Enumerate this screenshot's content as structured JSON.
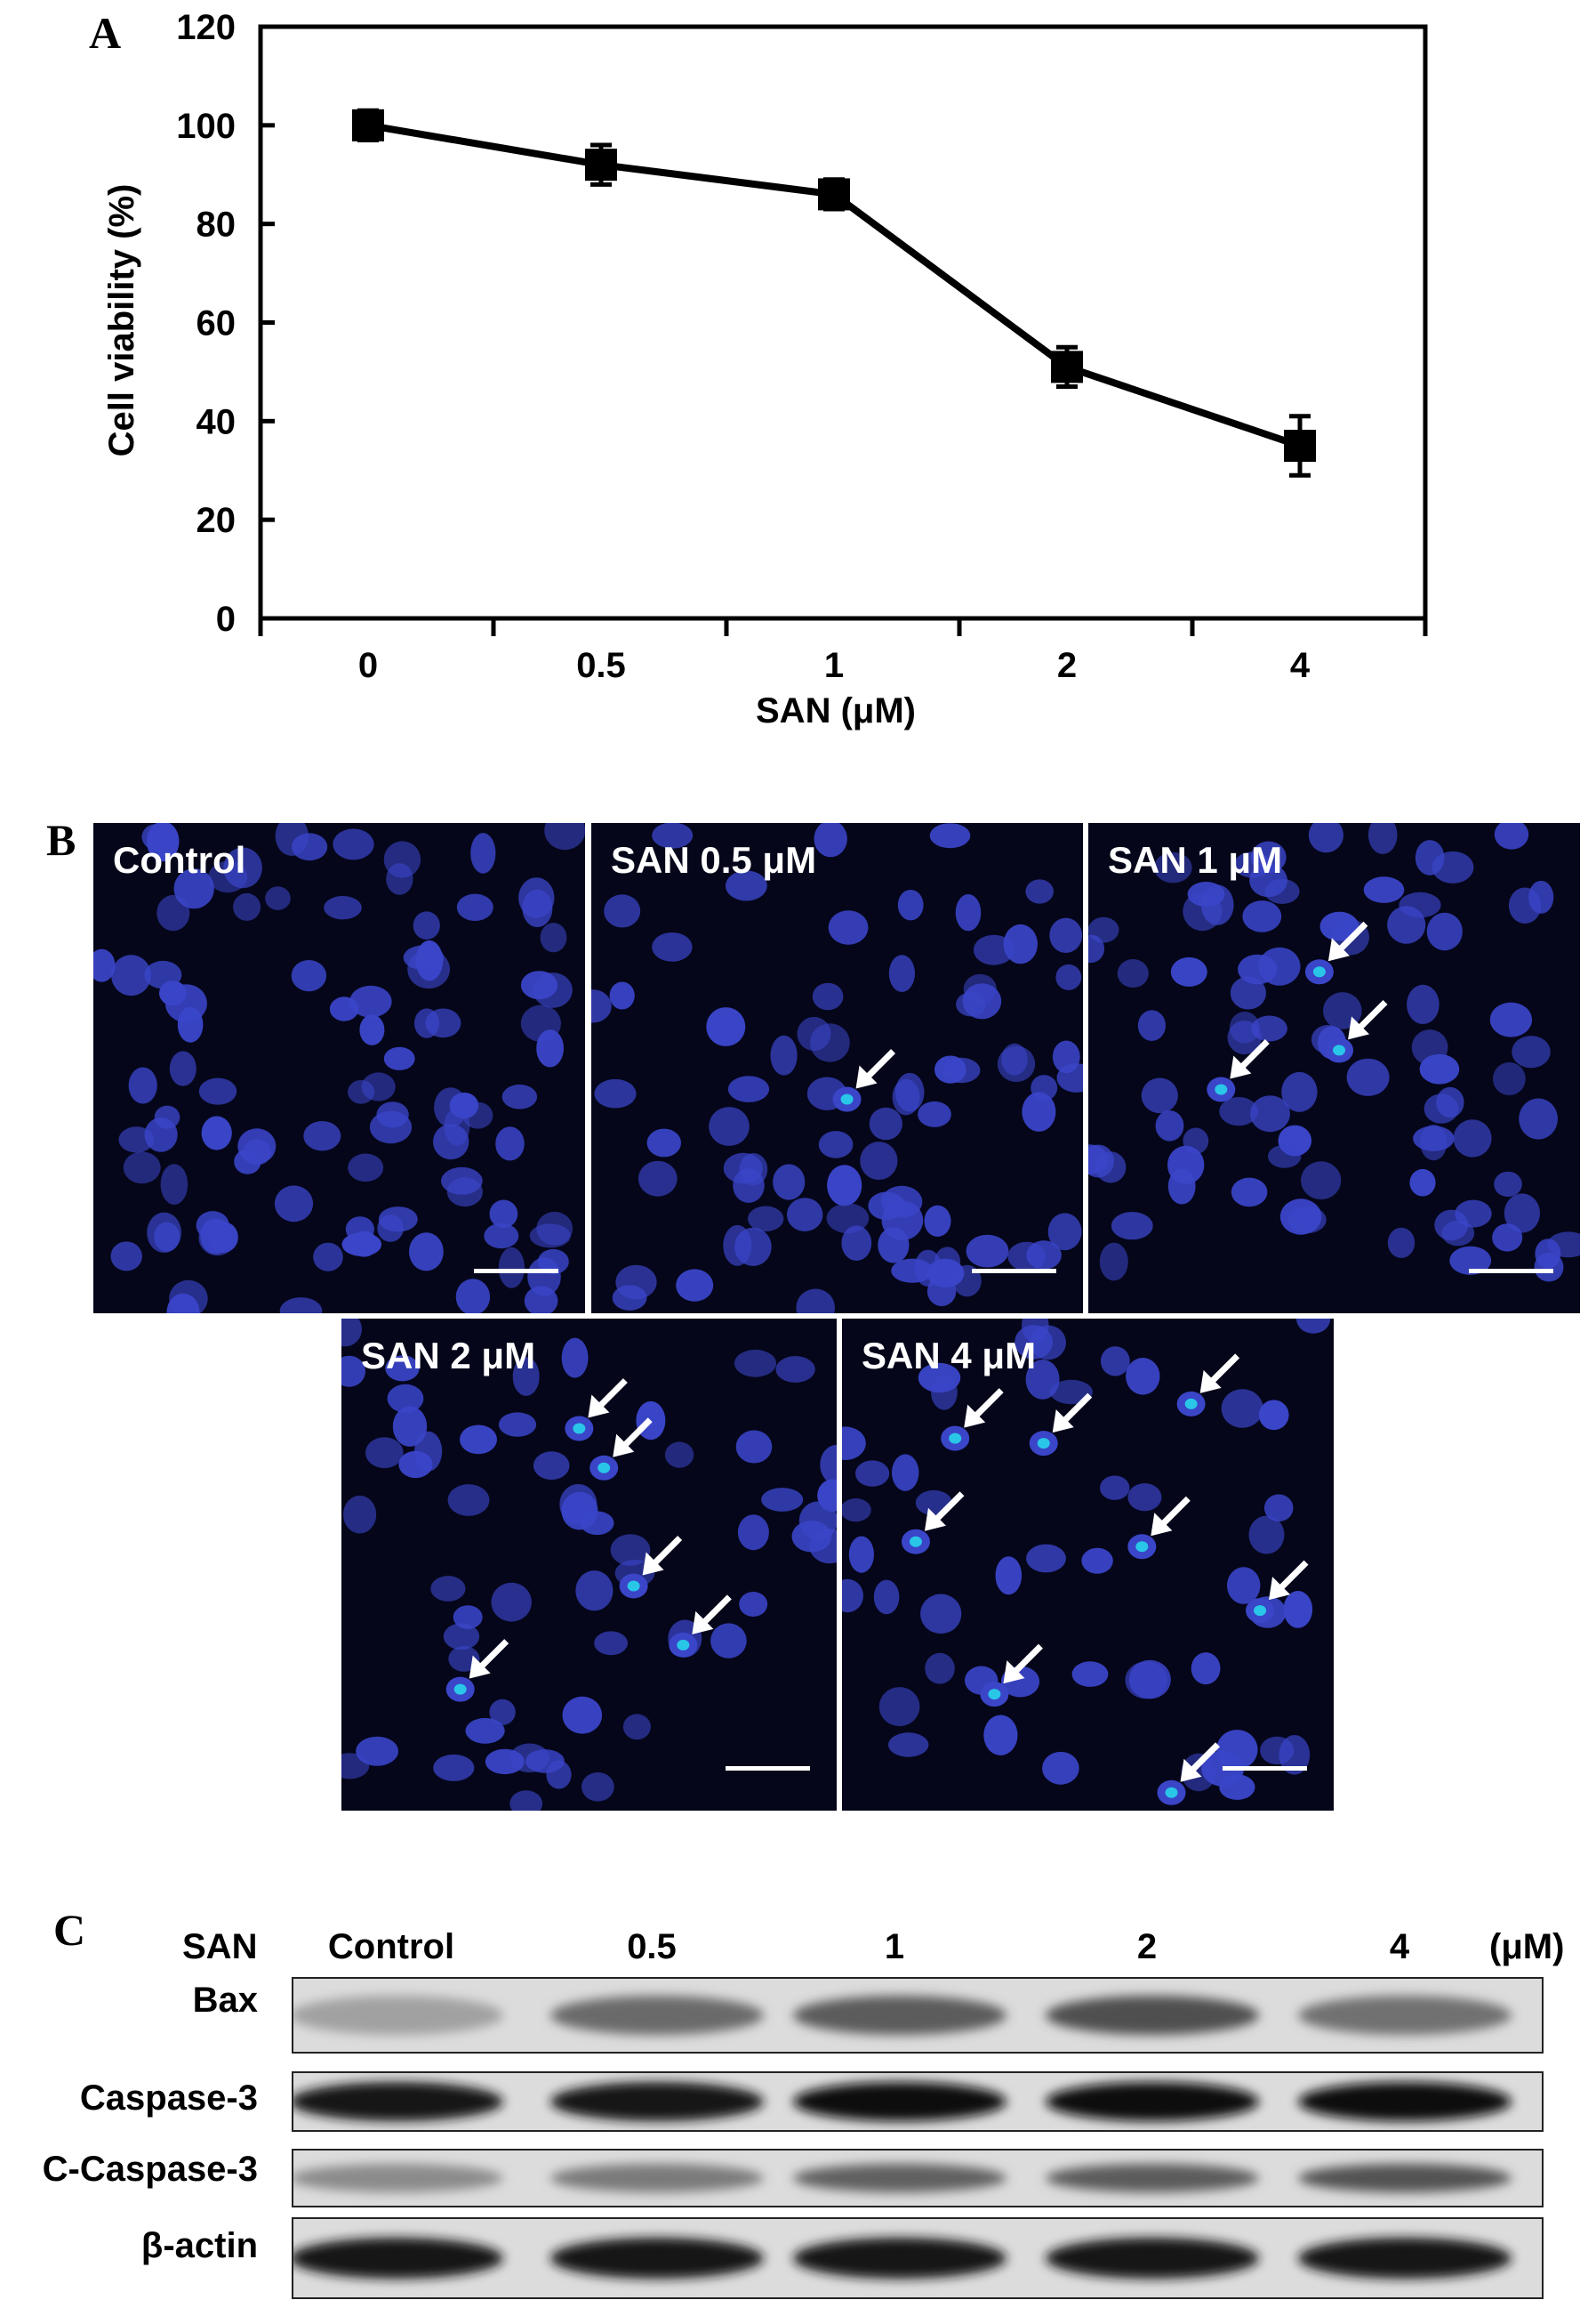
{
  "panels": {
    "a": {
      "letter": "A"
    },
    "b": {
      "letter": "B"
    },
    "c": {
      "letter": "C"
    }
  },
  "chart_data": {
    "type": "line",
    "categories": [
      "0",
      "0.5",
      "1",
      "2",
      "4"
    ],
    "series": [
      {
        "values": [
          100,
          92,
          86,
          51,
          35
        ],
        "errors": [
          3,
          4,
          3,
          4,
          6
        ]
      }
    ],
    "xlabel": "SAN (μM)",
    "ylabel": "Cell viability (%)",
    "ylim": [
      0,
      120
    ],
    "yticks": [
      0,
      20,
      40,
      60,
      80,
      100,
      120
    ],
    "grid": false,
    "marker": "square",
    "color": "#000000"
  },
  "microscopy": {
    "images": [
      {
        "label": "Control"
      },
      {
        "label": "SAN 0.5 μM"
      },
      {
        "label": "SAN 1 μM"
      },
      {
        "label": "SAN 2 μM"
      },
      {
        "label": "SAN 4 μM"
      }
    ],
    "nucleus_color": "#3a45c8",
    "apoptotic_color": "#29c6e8",
    "arrow_color": "#ffffff"
  },
  "western_blot": {
    "treatment_label": "SAN",
    "lanes": [
      "Control",
      "0.5",
      "1",
      "2",
      "4"
    ],
    "unit": "(μM)",
    "proteins": [
      {
        "name": "Bax",
        "intensity": [
          0.3,
          0.55,
          0.62,
          0.68,
          0.52
        ]
      },
      {
        "name": "Caspase-3",
        "intensity": [
          0.95,
          0.95,
          0.97,
          0.98,
          0.98
        ]
      },
      {
        "name": "C-Caspase-3",
        "intensity": [
          0.4,
          0.48,
          0.6,
          0.62,
          0.66
        ]
      },
      {
        "name": "β-actin",
        "intensity": [
          0.96,
          0.96,
          0.96,
          0.96,
          0.96
        ]
      }
    ]
  }
}
